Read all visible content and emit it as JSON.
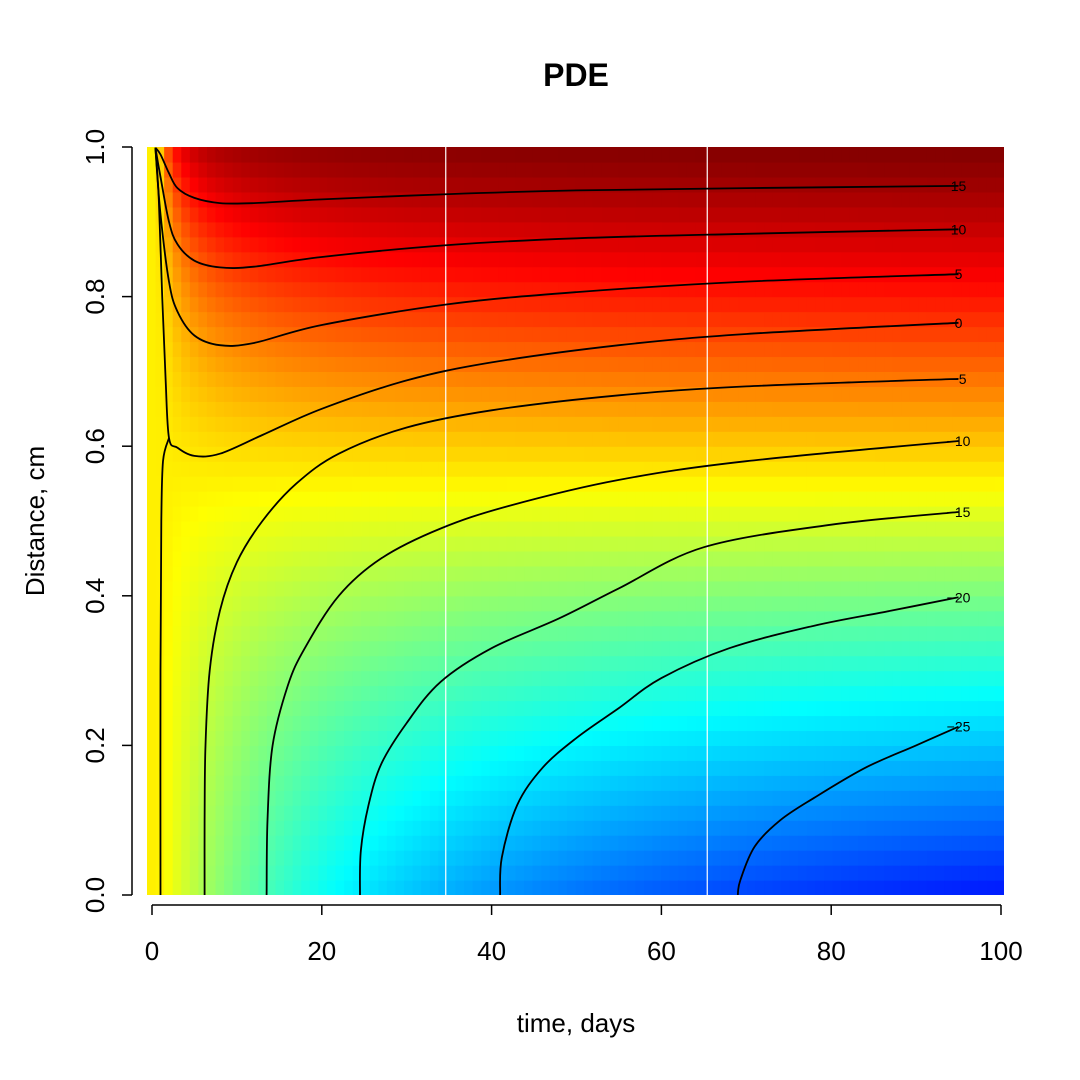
{
  "chart_data": {
    "type": "heatmap",
    "title": "PDE",
    "xlabel": "time, days",
    "ylabel": "Distance, cm",
    "xlim": [
      0,
      100
    ],
    "ylim": [
      0,
      1
    ],
    "x_ticks": [
      0,
      20,
      40,
      60,
      80,
      100
    ],
    "y_ticks": [
      "0.0",
      "0.2",
      "0.4",
      "0.6",
      "0.8",
      "1.0"
    ],
    "colormap": [
      "#00007F",
      "#0000FF",
      "#007FFF",
      "#00FFFF",
      "#7FFF7F",
      "#FFFF00",
      "#FF7F00",
      "#FF0000",
      "#7F0000"
    ],
    "value_range": [
      -30,
      20
    ],
    "grid": "off",
    "vertical_lines": [
      34.6,
      65.4
    ],
    "contours": [
      {
        "level": "15",
        "points": [
          [
            0.4,
            0.999
          ],
          [
            1,
            0.99
          ],
          [
            2,
            0.965
          ],
          [
            3,
            0.945
          ],
          [
            5,
            0.932
          ],
          [
            8,
            0.925
          ],
          [
            12,
            0.925
          ],
          [
            20,
            0.93
          ],
          [
            35,
            0.937
          ],
          [
            50,
            0.942
          ],
          [
            70,
            0.945
          ],
          [
            95,
            0.948
          ]
        ]
      },
      {
        "level": "10",
        "points": [
          [
            0.4,
            0.999
          ],
          [
            1,
            0.96
          ],
          [
            2,
            0.9
          ],
          [
            3,
            0.87
          ],
          [
            5,
            0.848
          ],
          [
            8,
            0.839
          ],
          [
            12,
            0.84
          ],
          [
            20,
            0.853
          ],
          [
            35,
            0.869
          ],
          [
            50,
            0.878
          ],
          [
            70,
            0.884
          ],
          [
            95,
            0.89
          ]
        ]
      },
      {
        "level": "5",
        "points": [
          [
            0.4,
            0.999
          ],
          [
            1,
            0.91
          ],
          [
            2,
            0.82
          ],
          [
            3,
            0.78
          ],
          [
            5,
            0.748
          ],
          [
            8,
            0.735
          ],
          [
            12,
            0.738
          ],
          [
            20,
            0.762
          ],
          [
            35,
            0.79
          ],
          [
            50,
            0.806
          ],
          [
            70,
            0.82
          ],
          [
            95,
            0.83
          ]
        ]
      },
      {
        "level": "0",
        "points": [
          [
            0.4,
            0.999
          ],
          [
            0.8,
            0.93
          ],
          [
            1.2,
            0.8
          ],
          [
            1.6,
            0.69
          ],
          [
            2,
            0.611
          ],
          [
            3,
            0.598
          ],
          [
            5,
            0.587
          ],
          [
            8,
            0.59
          ],
          [
            13,
            0.615
          ],
          [
            20,
            0.65
          ],
          [
            30,
            0.688
          ],
          [
            40,
            0.712
          ],
          [
            55,
            0.735
          ],
          [
            70,
            0.75
          ],
          [
            95,
            0.765
          ]
        ]
      },
      {
        "level": "-5",
        "points": [
          [
            1,
            0
          ],
          [
            1,
            0.3
          ],
          [
            1.1,
            0.5
          ],
          [
            1.3,
            0.58
          ],
          [
            2,
            0.611
          ]
        ]
      },
      {
        "level": "-5",
        "points": [
          [
            6.2,
            0
          ],
          [
            6.2,
            0.1
          ],
          [
            6.3,
            0.2
          ],
          [
            6.8,
            0.3
          ],
          [
            8,
            0.38
          ],
          [
            10,
            0.445
          ],
          [
            13,
            0.5
          ],
          [
            17,
            0.55
          ],
          [
            22,
            0.59
          ],
          [
            30,
            0.625
          ],
          [
            40,
            0.648
          ],
          [
            55,
            0.668
          ],
          [
            70,
            0.68
          ],
          [
            95,
            0.69
          ]
        ]
      },
      {
        "level": "-10",
        "points": [
          [
            13.5,
            0
          ],
          [
            13.6,
            0.1
          ],
          [
            14.2,
            0.2
          ],
          [
            16,
            0.28
          ],
          [
            18,
            0.33
          ],
          [
            22,
            0.4
          ],
          [
            27,
            0.45
          ],
          [
            34,
            0.49
          ],
          [
            42,
            0.52
          ],
          [
            55,
            0.555
          ],
          [
            70,
            0.58
          ],
          [
            95,
            0.607
          ]
        ]
      },
      {
        "level": "-15",
        "points": [
          [
            24.5,
            0
          ],
          [
            24.6,
            0.06
          ],
          [
            25.5,
            0.12
          ],
          [
            27,
            0.175
          ],
          [
            30,
            0.23
          ],
          [
            34,
            0.285
          ],
          [
            40,
            0.33
          ],
          [
            48,
            0.37
          ],
          [
            55,
            0.41
          ],
          [
            65,
            0.465
          ],
          [
            80,
            0.495
          ],
          [
            95,
            0.512
          ]
        ]
      },
      {
        "level": "-20",
        "points": [
          [
            41,
            0
          ],
          [
            41.2,
            0.05
          ],
          [
            43,
            0.12
          ],
          [
            46,
            0.17
          ],
          [
            50,
            0.21
          ],
          [
            55,
            0.25
          ],
          [
            60,
            0.29
          ],
          [
            68,
            0.33
          ],
          [
            78,
            0.36
          ],
          [
            87,
            0.38
          ],
          [
            95,
            0.398
          ]
        ]
      },
      {
        "level": "-25",
        "points": [
          [
            69,
            0
          ],
          [
            69.3,
            0.02
          ],
          [
            71,
            0.065
          ],
          [
            74,
            0.1
          ],
          [
            78,
            0.13
          ],
          [
            84,
            0.17
          ],
          [
            90,
            0.2
          ],
          [
            95,
            0.225
          ]
        ]
      }
    ],
    "contour_labels": [
      {
        "text": "15",
        "x": 95,
        "y": 0.948
      },
      {
        "text": "10",
        "x": 95,
        "y": 0.89
      },
      {
        "text": "5",
        "x": 95,
        "y": 0.83
      },
      {
        "text": "0",
        "x": 95,
        "y": 0.765
      },
      {
        "text": "-5",
        "x": 95,
        "y": 0.69
      },
      {
        "text": "-10",
        "x": 95,
        "y": 0.607
      },
      {
        "text": "-15",
        "x": 95,
        "y": 0.512
      },
      {
        "text": "-20",
        "x": 95,
        "y": 0.398
      },
      {
        "text": "-25",
        "x": 95,
        "y": 0.225
      }
    ]
  }
}
